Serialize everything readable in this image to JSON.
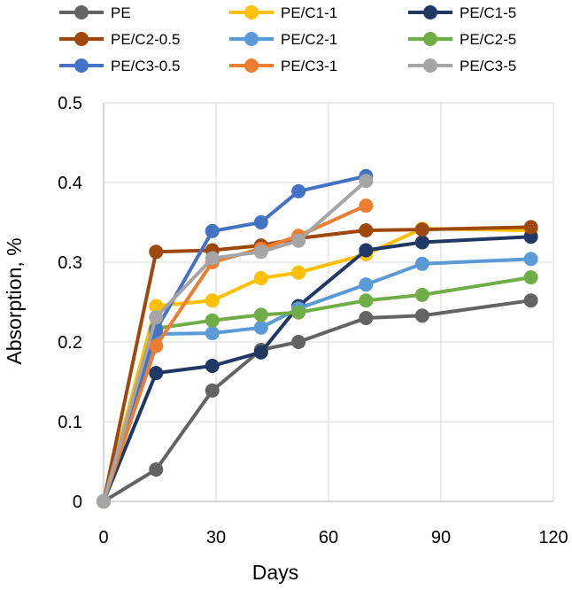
{
  "chart_data": {
    "type": "line",
    "xlabel": "Days",
    "ylabel": "Absorption, %",
    "xlim": [
      0,
      120
    ],
    "ylim": [
      0,
      0.5
    ],
    "xticks": [
      0,
      30,
      60,
      90,
      120
    ],
    "yticks": [
      0,
      0.1,
      0.2,
      0.3,
      0.4,
      0.5
    ],
    "xtick_labels": [
      "0",
      "30",
      "60",
      "90",
      "120"
    ],
    "ytick_labels": [
      "0",
      "0.1",
      "0.2",
      "0.3",
      "0.4",
      "0.5"
    ],
    "grid": true,
    "legend_position": "top",
    "series": [
      {
        "name": "PE",
        "color": "#636363",
        "x": [
          0,
          14,
          29,
          42,
          52,
          70,
          85,
          114
        ],
        "y": [
          0,
          0.04,
          0.139,
          0.19,
          0.2,
          0.23,
          0.233,
          0.252
        ]
      },
      {
        "name": "PE/C1-1",
        "color": "#FFC000",
        "x": [
          0,
          14,
          29,
          42,
          52,
          70,
          85,
          114
        ],
        "y": [
          0,
          0.245,
          0.252,
          0.28,
          0.287,
          0.31,
          0.342,
          0.34
        ]
      },
      {
        "name": "PE/C1-5",
        "color": "#203864",
        "x": [
          0,
          14,
          29,
          42,
          52,
          70,
          85,
          114
        ],
        "y": [
          0,
          0.161,
          0.17,
          0.187,
          0.245,
          0.315,
          0.325,
          0.332
        ]
      },
      {
        "name": "PE/C2-0.5",
        "color": "#9E480E",
        "x": [
          0,
          14,
          29,
          42,
          52,
          70,
          85,
          114
        ],
        "y": [
          0,
          0.313,
          0.315,
          0.321,
          0.33,
          0.34,
          0.341,
          0.344
        ]
      },
      {
        "name": "PE/C2-1",
        "color": "#5B9BD5",
        "x": [
          0,
          14,
          29,
          42,
          52,
          70,
          85,
          114
        ],
        "y": [
          0,
          0.21,
          0.211,
          0.218,
          0.242,
          0.272,
          0.298,
          0.304
        ]
      },
      {
        "name": "PE/C2-5",
        "color": "#70AD47",
        "x": [
          0,
          14,
          29,
          42,
          52,
          70,
          85,
          114
        ],
        "y": [
          0,
          0.217,
          0.227,
          0.234,
          0.237,
          0.252,
          0.259,
          0.281
        ]
      },
      {
        "name": "PE/C3-0.5",
        "color": "#4472C4",
        "x": [
          0,
          14,
          29,
          42,
          52,
          70
        ],
        "y": [
          0,
          0.215,
          0.339,
          0.35,
          0.389,
          0.408
        ]
      },
      {
        "name": "PE/C3-1",
        "color": "#ED7D31",
        "x": [
          0,
          14,
          29,
          42,
          52,
          70
        ],
        "y": [
          0,
          0.195,
          0.3,
          0.317,
          0.333,
          0.371
        ]
      },
      {
        "name": "PE/C3-5",
        "color": "#A5A5A5",
        "x": [
          0,
          14,
          29,
          42,
          52,
          70
        ],
        "y": [
          0,
          0.231,
          0.305,
          0.313,
          0.327,
          0.402
        ]
      }
    ]
  }
}
